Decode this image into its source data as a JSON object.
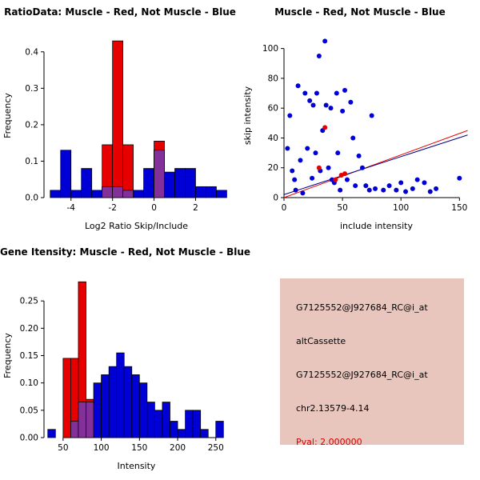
{
  "chart_data": [
    {
      "type": "bar",
      "variant": "overlaid-histogram",
      "title": "RatioData: Muscle - Red, Not Muscle - Blue",
      "xlabel": "Log2 Ratio Skip/Include",
      "ylabel": "Frequency",
      "xlim": [
        -5.3,
        3.6
      ],
      "ylim": [
        0,
        0.45
      ],
      "xticks": {
        "values": [
          -4,
          -2,
          0,
          2
        ],
        "labels": [
          "-4",
          "-2",
          "0",
          "2"
        ]
      },
      "yticks": {
        "values": [
          0,
          0.1,
          0.2,
          0.3,
          0.4
        ],
        "labels": [
          "0.0",
          "0.1",
          "0.2",
          "0.3",
          "0.4"
        ]
      },
      "bin_width": 0.5,
      "grid": false,
      "legend": "none",
      "overlap_color": "#83309B",
      "series": [
        {
          "name": "Not Muscle",
          "color": "#0000D6",
          "bins": [
            [
              -5,
              0.02
            ],
            [
              -4.5,
              0.13
            ],
            [
              -4,
              0.02
            ],
            [
              -3.5,
              0.08
            ],
            [
              -3,
              0.02
            ],
            [
              -2.5,
              0.03
            ],
            [
              -2,
              0.03
            ],
            [
              -1.5,
              0.02
            ],
            [
              -1,
              0.02
            ],
            [
              -0.5,
              0.08
            ],
            [
              0,
              0.13
            ],
            [
              0.5,
              0.07
            ],
            [
              1,
              0.08
            ],
            [
              1.5,
              0.08
            ],
            [
              2,
              0.03
            ],
            [
              2.5,
              0.03
            ],
            [
              3,
              0.02
            ]
          ]
        },
        {
          "name": "Muscle",
          "color": "#E60000",
          "bins": [
            [
              -2.5,
              0.145
            ],
            [
              -2,
              0.43
            ],
            [
              -1.5,
              0.145
            ],
            [
              0,
              0.155
            ]
          ]
        }
      ]
    },
    {
      "type": "scatter",
      "title": "Muscle - Red, Not Muscle - Blue",
      "xlabel": "include intensity",
      "ylabel": "skip intensity",
      "xlim": [
        0,
        158
      ],
      "ylim": [
        0,
        110
      ],
      "xticks": {
        "values": [
          0,
          50,
          100,
          150
        ],
        "labels": [
          "0",
          "50",
          "100",
          "150"
        ]
      },
      "yticks": {
        "values": [
          0,
          20,
          40,
          60,
          80,
          100
        ],
        "labels": [
          "0",
          "20",
          "40",
          "60",
          "80",
          "100"
        ]
      },
      "grid": false,
      "legend": "none",
      "series": [
        {
          "name": "Not Muscle",
          "color": "#0000D6",
          "points": [
            [
              3,
              33
            ],
            [
              5,
              55
            ],
            [
              7,
              18
            ],
            [
              9,
              12
            ],
            [
              10,
              5
            ],
            [
              12,
              75
            ],
            [
              14,
              25
            ],
            [
              16,
              3
            ],
            [
              18,
              70
            ],
            [
              20,
              33
            ],
            [
              22,
              65
            ],
            [
              24,
              13
            ],
            [
              25,
              62
            ],
            [
              27,
              30
            ],
            [
              28,
              70
            ],
            [
              30,
              95
            ],
            [
              31,
              18
            ],
            [
              33,
              45
            ],
            [
              35,
              105
            ],
            [
              36,
              62
            ],
            [
              38,
              20
            ],
            [
              40,
              60
            ],
            [
              41,
              12
            ],
            [
              43,
              10
            ],
            [
              45,
              70
            ],
            [
              46,
              30
            ],
            [
              48,
              5
            ],
            [
              50,
              58
            ],
            [
              52,
              72
            ],
            [
              54,
              12
            ],
            [
              57,
              64
            ],
            [
              59,
              40
            ],
            [
              61,
              8
            ],
            [
              64,
              28
            ],
            [
              67,
              20
            ],
            [
              70,
              8
            ],
            [
              73,
              5
            ],
            [
              75,
              55
            ],
            [
              78,
              6
            ],
            [
              85,
              5
            ],
            [
              90,
              8
            ],
            [
              96,
              5
            ],
            [
              100,
              10
            ],
            [
              104,
              4
            ],
            [
              110,
              6
            ],
            [
              114,
              12
            ],
            [
              120,
              10
            ],
            [
              125,
              4
            ],
            [
              130,
              6
            ],
            [
              150,
              13
            ]
          ]
        },
        {
          "name": "Muscle",
          "color": "#E60000",
          "points": [
            [
              30,
              20
            ],
            [
              35,
              47
            ],
            [
              44,
              12
            ],
            [
              49,
              15
            ],
            [
              52,
              16
            ]
          ]
        }
      ],
      "lines": [
        {
          "name": "muscle-fit-line",
          "color": "#E60000",
          "x1": 0,
          "y1": 0,
          "x2": 157,
          "y2": 45
        },
        {
          "name": "notmuscle-fit-line",
          "color": "#00008B",
          "x1": 0,
          "y1": 2,
          "x2": 157,
          "y2": 42
        }
      ]
    },
    {
      "type": "bar",
      "variant": "overlaid-histogram",
      "title": "Gene Itensity: Muscle - Red, Not Muscle - Blue",
      "xlabel": "Intensity",
      "ylabel": "Frequency",
      "xlim": [
        25,
        267
      ],
      "ylim": [
        0,
        0.3
      ],
      "xticks": {
        "values": [
          50,
          100,
          150,
          200,
          250
        ],
        "labels": [
          "50",
          "100",
          "150",
          "200",
          "250"
        ]
      },
      "yticks": {
        "values": [
          0,
          0.05,
          0.1,
          0.15,
          0.2,
          0.25
        ],
        "labels": [
          "0.00",
          "0.05",
          "0.10",
          "0.15",
          "0.20",
          "0.25"
        ]
      },
      "bin_width": 10,
      "grid": false,
      "legend": "none",
      "overlap_color": "#83309B",
      "series": [
        {
          "name": "Not Muscle",
          "color": "#0000D6",
          "bins": [
            [
              30,
              0.015
            ],
            [
              60,
              0.03
            ],
            [
              70,
              0.065
            ],
            [
              80,
              0.065
            ],
            [
              90,
              0.1
            ],
            [
              100,
              0.115
            ],
            [
              110,
              0.13
            ],
            [
              120,
              0.155
            ],
            [
              130,
              0.13
            ],
            [
              140,
              0.115
            ],
            [
              150,
              0.1
            ],
            [
              160,
              0.065
            ],
            [
              170,
              0.05
            ],
            [
              180,
              0.065
            ],
            [
              190,
              0.03
            ],
            [
              200,
              0.015
            ],
            [
              210,
              0.05
            ],
            [
              220,
              0.05
            ],
            [
              230,
              0.015
            ],
            [
              250,
              0.03
            ]
          ]
        },
        {
          "name": "Muscle",
          "color": "#E60000",
          "bins": [
            [
              50,
              0.145
            ],
            [
              60,
              0.145
            ],
            [
              70,
              0.285
            ],
            [
              80,
              0.07
            ]
          ]
        }
      ]
    }
  ],
  "info_box": {
    "background": "#E8C6BD",
    "lines": [
      {
        "text": "G7125552@J927684_RC@i_at",
        "color": "#000000"
      },
      {
        "text": "altCassette",
        "color": "#000000"
      },
      {
        "text": "G7125552@J927684_RC@i_at",
        "color": "#000000"
      },
      {
        "text": "chr2.13579-4.14",
        "color": "#000000"
      },
      {
        "text": "Pval: 2.000000",
        "color": "#D40000"
      }
    ]
  }
}
